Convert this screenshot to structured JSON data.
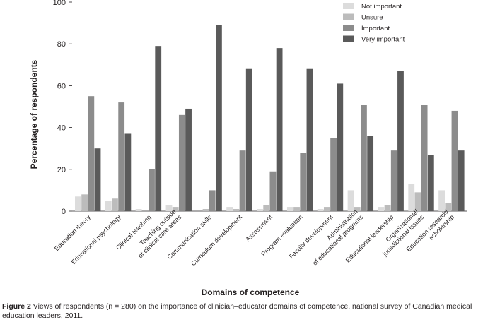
{
  "chart_data": {
    "type": "bar",
    "title": "",
    "xlabel": "Domains of competence",
    "ylabel": "Percentage of  respondents",
    "ylim": [
      0,
      100
    ],
    "yticks": [
      0,
      20,
      40,
      60,
      80,
      100
    ],
    "legend_position": "top-right",
    "categories": [
      "Education theory",
      "Educational psychology",
      "Clinical teaching",
      "Teaching outside of clinical care areas",
      "Communication skills",
      "Curriculum development",
      "Assessment",
      "Program evaluation",
      "Faculty development",
      "Administration of educational programs",
      "Educational leadership",
      "Organizational/ jurisdictional issues",
      "Education research/ scholarship"
    ],
    "category_label_lines": [
      [
        "Education theory"
      ],
      [
        "Educational psychology"
      ],
      [
        "Clinical teaching"
      ],
      [
        "Teaching outside",
        "of clinical care areas"
      ],
      [
        "Communication skills"
      ],
      [
        "Curriculum development"
      ],
      [
        "Assessment"
      ],
      [
        "Program evaluation"
      ],
      [
        "Faculty development"
      ],
      [
        "Administration",
        "of educational programs"
      ],
      [
        "Educational leadership"
      ],
      [
        "Organizational/",
        "jurisdictional issues"
      ],
      [
        "Education research/",
        "scholarship"
      ]
    ],
    "series": [
      {
        "name": "Not important",
        "color": "#dcdcdc",
        "values": [
          7,
          5,
          1,
          3,
          0,
          2,
          1,
          2,
          1,
          10,
          2,
          13,
          10
        ]
      },
      {
        "name": "Unsure",
        "color": "#bcbcbc",
        "values": [
          8,
          6,
          0,
          2,
          1,
          1,
          3,
          2,
          2,
          2,
          3,
          9,
          4
        ]
      },
      {
        "name": "Important",
        "color": "#8c8c8c",
        "values": [
          55,
          52,
          20,
          46,
          10,
          29,
          19,
          28,
          35,
          51,
          29,
          51,
          48
        ]
      },
      {
        "name": "Very important",
        "color": "#5a5a5a",
        "values": [
          30,
          37,
          79,
          49,
          89,
          68,
          78,
          68,
          61,
          36,
          67,
          27,
          29
        ]
      }
    ]
  },
  "caption": {
    "label": "Figure 2",
    "text": " Views of respondents (n = 280) on the importance of clinician–educator domains of competence, national survey of Canadian medical education leaders, 2011."
  }
}
